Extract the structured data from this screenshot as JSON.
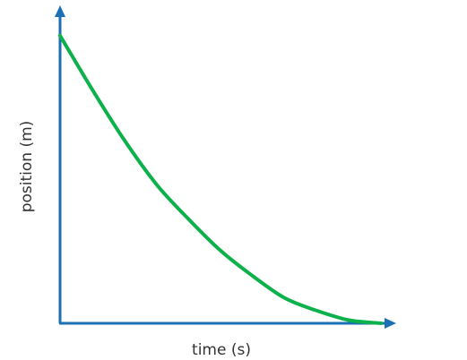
{
  "chart_data": {
    "type": "line",
    "title": "",
    "xlabel": "time (s)",
    "ylabel": "position (m)",
    "x_ticks": [],
    "y_ticks": [],
    "grid": false,
    "legend": "none",
    "xlim": [
      0,
      1
    ],
    "ylim": [
      0,
      1
    ],
    "series": [
      {
        "x": [
          0,
          0.1,
          0.2,
          0.3,
          0.4,
          0.5,
          0.6,
          0.7,
          0.8,
          0.9,
          1.0
        ],
        "y": [
          0.91,
          0.74,
          0.58,
          0.44,
          0.33,
          0.23,
          0.15,
          0.08,
          0.04,
          0.01,
          0.0
        ]
      }
    ],
    "colors": {
      "axis": "#1a6fb5",
      "curve": "#0db14b"
    }
  }
}
